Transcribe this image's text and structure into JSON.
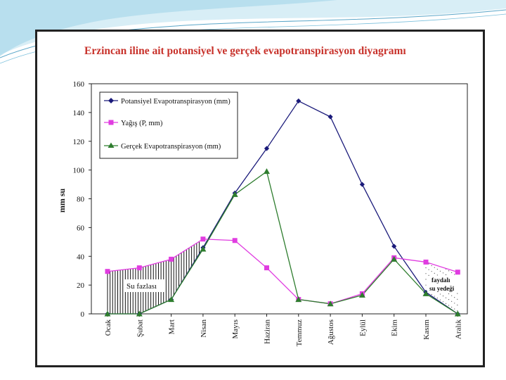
{
  "title": "Erzincan iline ait potansiyel ve gerçek evapotranspirasyon diyagramı",
  "chart_data": {
    "type": "line",
    "title": "Erzincan iline ait potansiyel ve gerçek evapotranspirasyon diyagramı",
    "ylabel": "mm su",
    "xlabel": "",
    "ylim": [
      0,
      160
    ],
    "yticks": [
      0,
      20,
      40,
      60,
      80,
      100,
      120,
      140,
      160
    ],
    "categories": [
      "Ocak",
      "Şubat",
      "Mart",
      "Nisan",
      "Mayıs",
      "Haziran",
      "Temmuz",
      "Ağustos",
      "Eylül",
      "Ekim",
      "Kasım",
      "Aralık"
    ],
    "series": [
      {
        "name": "Potansiyel Evapotranspirasyon (mm)",
        "color": "#1a1a7a",
        "marker": "diamond",
        "values": [
          0,
          0,
          10,
          46,
          84,
          115,
          148,
          137,
          90,
          47,
          15,
          0
        ]
      },
      {
        "name": "Yağış (P, mm)",
        "color": "#e03ce0",
        "marker": "square",
        "values": [
          29.5,
          32,
          38,
          52,
          51,
          32,
          10,
          7,
          14,
          39,
          36,
          29
        ]
      },
      {
        "name": "Gerçek Evapotranspirasyon (mm)",
        "color": "#2e7d2e",
        "marker": "triangle",
        "values": [
          0,
          0,
          10,
          45,
          83,
          99,
          10,
          7,
          13,
          38,
          14,
          0
        ]
      }
    ],
    "annotations": [
      {
        "text": "Su fazlası",
        "near": "Şubat"
      },
      {
        "text": "faydalı",
        "near": "Kasım-Aralık"
      },
      {
        "text": "su yedeği",
        "near": "Kasım-Aralık"
      }
    ],
    "legend_position": "top-left",
    "grid": false
  }
}
